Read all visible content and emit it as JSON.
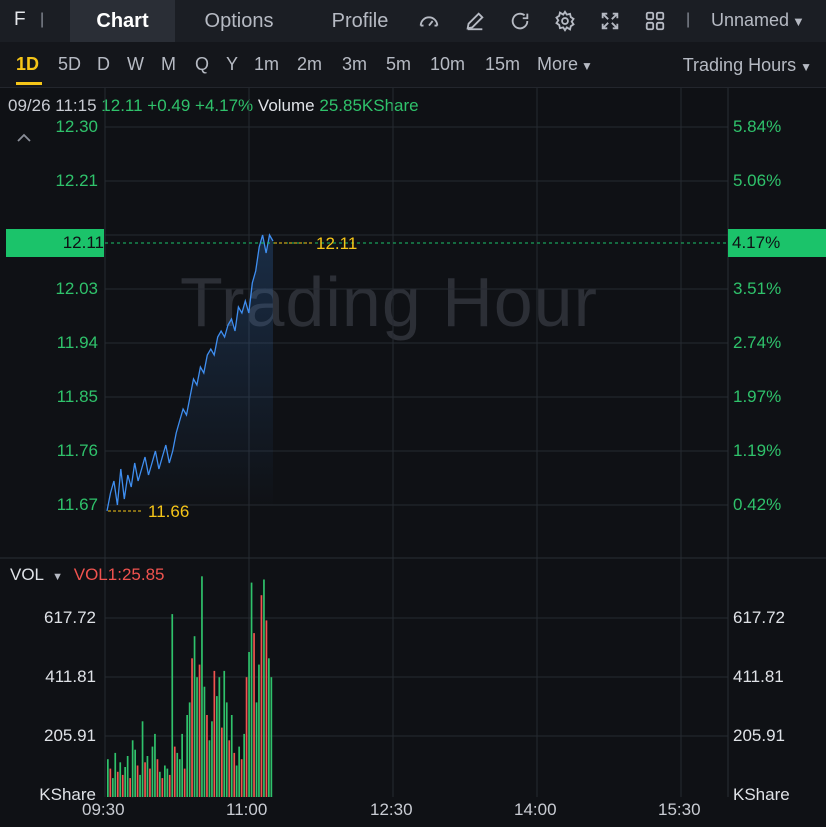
{
  "header": {
    "ticker": "F",
    "separator": "|",
    "tabs": [
      {
        "label": "Chart",
        "active": true
      },
      {
        "label": "Options",
        "active": false
      },
      {
        "label": "Profile",
        "active": false
      }
    ],
    "tools": [
      "speed-gauge-icon",
      "pen-edit-icon",
      "refresh-icon",
      "gear-icon",
      "fullscreen-icon",
      "grid-layout-icon"
    ],
    "layout_name": "Unnamed"
  },
  "timeframes": {
    "items": [
      "1D",
      "5D",
      "D",
      "W",
      "M",
      "Q",
      "Y",
      "1m",
      "2m",
      "3m",
      "5m",
      "10m",
      "15m"
    ],
    "active": "1D",
    "more_label": "More",
    "session_label": "Trading Hours"
  },
  "quote": {
    "time": "09/26 11:15",
    "price": "12.11",
    "change": "+0.49",
    "change_pct": "+4.17%",
    "volume_label": "Volume",
    "volume_value": "25.85KShare"
  },
  "colors": {
    "up": "#2fc26b",
    "down": "#f0534f",
    "line": "#3f8ef0",
    "current": "#1bc36a",
    "marker": "#f5c518"
  },
  "chart_data": {
    "type": "line",
    "title": "",
    "watermark": "Trading Hour",
    "x_ticks": [
      "09:30",
      "11:00",
      "12:30",
      "14:00",
      "15:30"
    ],
    "y_ticks_left": [
      "12.30",
      "12.21",
      "12.11",
      "12.03",
      "11.94",
      "11.85",
      "11.76",
      "11.67"
    ],
    "y_ticks_right": [
      "5.84%",
      "5.06%",
      "4.17%",
      "3.51%",
      "2.74%",
      "1.97%",
      "1.19%",
      "0.42%"
    ],
    "ylim": [
      11.67,
      12.3
    ],
    "current_price": "12.11",
    "current_pct": "4.17%",
    "high_marker": "12.11",
    "low_marker": "11.66",
    "series": [
      {
        "values": [
          11.66,
          11.69,
          11.71,
          11.67,
          11.73,
          11.68,
          11.72,
          11.7,
          11.74,
          11.71,
          11.73,
          11.75,
          11.72,
          11.74,
          11.76,
          11.73,
          11.75,
          11.77,
          11.74,
          11.76,
          11.79,
          11.81,
          11.83,
          11.82,
          11.85,
          11.88,
          11.87,
          11.9,
          11.89,
          11.92,
          11.93,
          11.92,
          11.95,
          11.96,
          11.95,
          11.97,
          11.98,
          11.96,
          12.0,
          11.99,
          12.01,
          11.99,
          12.04,
          12.06,
          12.1,
          12.12,
          12.09,
          12.12,
          12.11
        ]
      }
    ],
    "volume": {
      "label": "VOL",
      "indicator": "VOL1:25.85",
      "unit": "KShare",
      "y_ticks": [
        "617.72",
        "411.81",
        "205.91"
      ],
      "ylim": [
        0,
        720
      ],
      "bars": [
        {
          "v": 120,
          "d": "up"
        },
        {
          "v": 90,
          "d": "down"
        },
        {
          "v": 60,
          "d": "up"
        },
        {
          "v": 140,
          "d": "up"
        },
        {
          "v": 80,
          "d": "down"
        },
        {
          "v": 110,
          "d": "up"
        },
        {
          "v": 70,
          "d": "down"
        },
        {
          "v": 95,
          "d": "up"
        },
        {
          "v": 130,
          "d": "up"
        },
        {
          "v": 60,
          "d": "down"
        },
        {
          "v": 180,
          "d": "up"
        },
        {
          "v": 150,
          "d": "up"
        },
        {
          "v": 100,
          "d": "down"
        },
        {
          "v": 70,
          "d": "up"
        },
        {
          "v": 240,
          "d": "up"
        },
        {
          "v": 110,
          "d": "down"
        },
        {
          "v": 130,
          "d": "up"
        },
        {
          "v": 90,
          "d": "down"
        },
        {
          "v": 160,
          "d": "up"
        },
        {
          "v": 200,
          "d": "up"
        },
        {
          "v": 120,
          "d": "down"
        },
        {
          "v": 80,
          "d": "up"
        },
        {
          "v": 60,
          "d": "down"
        },
        {
          "v": 100,
          "d": "up"
        },
        {
          "v": 90,
          "d": "up"
        },
        {
          "v": 70,
          "d": "down"
        },
        {
          "v": 580,
          "d": "up"
        },
        {
          "v": 160,
          "d": "down"
        },
        {
          "v": 140,
          "d": "up"
        },
        {
          "v": 120,
          "d": "up"
        },
        {
          "v": 200,
          "d": "up"
        },
        {
          "v": 90,
          "d": "down"
        },
        {
          "v": 260,
          "d": "up"
        },
        {
          "v": 300,
          "d": "up"
        },
        {
          "v": 440,
          "d": "down"
        },
        {
          "v": 510,
          "d": "up"
        },
        {
          "v": 380,
          "d": "up"
        },
        {
          "v": 420,
          "d": "down"
        },
        {
          "v": 700,
          "d": "up"
        },
        {
          "v": 350,
          "d": "up"
        },
        {
          "v": 260,
          "d": "down"
        },
        {
          "v": 180,
          "d": "up"
        },
        {
          "v": 240,
          "d": "up"
        },
        {
          "v": 400,
          "d": "down"
        },
        {
          "v": 320,
          "d": "up"
        },
        {
          "v": 380,
          "d": "up"
        },
        {
          "v": 220,
          "d": "down"
        },
        {
          "v": 400,
          "d": "up"
        },
        {
          "v": 300,
          "d": "up"
        },
        {
          "v": 180,
          "d": "down"
        },
        {
          "v": 260,
          "d": "up"
        },
        {
          "v": 140,
          "d": "down"
        },
        {
          "v": 100,
          "d": "up"
        },
        {
          "v": 160,
          "d": "up"
        },
        {
          "v": 120,
          "d": "down"
        },
        {
          "v": 200,
          "d": "up"
        },
        {
          "v": 380,
          "d": "down"
        },
        {
          "v": 460,
          "d": "up"
        },
        {
          "v": 680,
          "d": "up"
        },
        {
          "v": 520,
          "d": "down"
        },
        {
          "v": 300,
          "d": "up"
        },
        {
          "v": 420,
          "d": "up"
        },
        {
          "v": 640,
          "d": "down"
        },
        {
          "v": 690,
          "d": "up"
        },
        {
          "v": 560,
          "d": "down"
        },
        {
          "v": 440,
          "d": "up"
        },
        {
          "v": 380,
          "d": "up"
        }
      ]
    }
  }
}
